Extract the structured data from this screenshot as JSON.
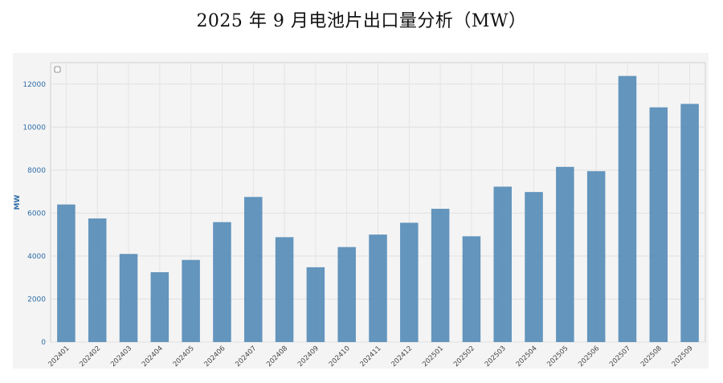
{
  "title": "2025 年 9 月电池片出口量分析（MW）",
  "chart_data": {
    "type": "bar",
    "title": "2025 年 9 月电池片出口量分析（MW）",
    "xlabel": "",
    "ylabel": "MW",
    "ylim": [
      0,
      13000
    ],
    "yticks": [
      0,
      2000,
      4000,
      6000,
      8000,
      10000,
      12000
    ],
    "grid": true,
    "bar_color": "#5b8fb9",
    "categories": [
      "202401",
      "202402",
      "202403",
      "202404",
      "202405",
      "202406",
      "202407",
      "202408",
      "202409",
      "202410",
      "202411",
      "202412",
      "202501",
      "202502",
      "202503",
      "202504",
      "202505",
      "202506",
      "202507",
      "202508",
      "202509"
    ],
    "values": [
      6400,
      5750,
      4100,
      3250,
      3820,
      5580,
      6750,
      4880,
      3480,
      4420,
      5000,
      5550,
      6200,
      4920,
      7230,
      6980,
      8150,
      7950,
      12380,
      10920,
      11080
    ]
  }
}
